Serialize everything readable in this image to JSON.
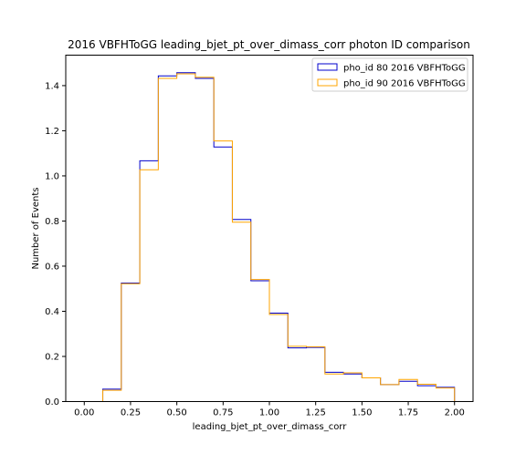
{
  "chart_data": {
    "type": "histogram",
    "title": "2016 VBFHToGG leading_bjet_pt_over_dimass_corr photon ID comparison",
    "xlabel": "leading_bjet_pt_over_dimass_corr",
    "ylabel": "Number of Events",
    "xlim": [
      -0.1,
      2.1
    ],
    "ylim": [
      0,
      1.535
    ],
    "x_ticks": [
      "0.00",
      "0.25",
      "0.50",
      "0.75",
      "1.00",
      "1.25",
      "1.50",
      "1.75",
      "2.00"
    ],
    "y_ticks": [
      "0.0",
      "0.2",
      "0.4",
      "0.6",
      "0.8",
      "1.0",
      "1.2",
      "1.4"
    ],
    "grid": false,
    "legend_position": "top-right",
    "bin_edges": [
      0.0,
      0.1,
      0.2,
      0.3,
      0.4,
      0.5,
      0.6,
      0.7,
      0.8,
      0.9,
      1.0,
      1.1,
      1.2,
      1.3,
      1.4,
      1.5,
      1.6,
      1.7,
      1.8,
      1.9,
      2.0
    ],
    "series": [
      {
        "name": "pho_id 80 2016 VBFHToGG",
        "color": "#0000cc",
        "values": [
          0.0,
          0.055,
          0.525,
          1.067,
          1.443,
          1.457,
          1.432,
          1.128,
          0.807,
          0.535,
          0.392,
          0.238,
          0.24,
          0.13,
          0.122,
          0.105,
          0.075,
          0.09,
          0.07,
          0.063
        ]
      },
      {
        "name": "pho_id 90 2016 VBFHToGG",
        "color": "#ffa500",
        "values": [
          0.0,
          0.05,
          0.522,
          1.027,
          1.432,
          1.452,
          1.437,
          1.155,
          0.795,
          0.541,
          0.386,
          0.245,
          0.243,
          0.122,
          0.127,
          0.105,
          0.075,
          0.098,
          0.077,
          0.06
        ]
      }
    ]
  }
}
